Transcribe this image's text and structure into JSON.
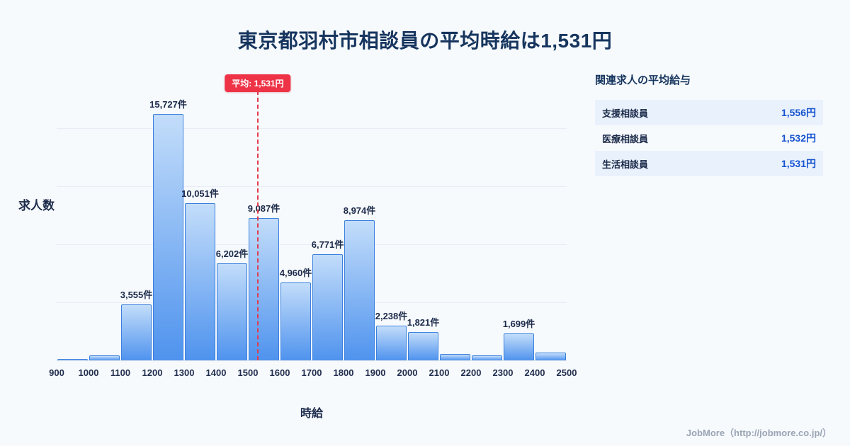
{
  "page": {
    "title": "東京都羽村市相談員の平均時給は1,531円"
  },
  "chart_data": {
    "type": "bar",
    "title": "東京都羽村市相談員の平均時給は1,531円",
    "xlabel": "時給",
    "ylabel": "求人数",
    "xlim": [
      900,
      2500
    ],
    "ylim": [
      0,
      18500
    ],
    "grid": true,
    "legend": "none",
    "x_ticks": [
      "900",
      "1000",
      "1100",
      "1200",
      "1300",
      "1400",
      "1500",
      "1600",
      "1700",
      "1800",
      "1900",
      "2000",
      "2100",
      "2200",
      "2300",
      "2400",
      "2500"
    ],
    "bins": [
      {
        "x0": 900,
        "x1": 1000,
        "value": 100,
        "label": ""
      },
      {
        "x0": 1000,
        "x1": 1100,
        "value": 320,
        "label": ""
      },
      {
        "x0": 1100,
        "x1": 1200,
        "value": 3555,
        "label": "3,555件"
      },
      {
        "x0": 1200,
        "x1": 1300,
        "value": 15727,
        "label": "15,727件"
      },
      {
        "x0": 1300,
        "x1": 1400,
        "value": 10051,
        "label": "10,051件"
      },
      {
        "x0": 1400,
        "x1": 1500,
        "value": 6202,
        "label": "6,202件"
      },
      {
        "x0": 1500,
        "x1": 1600,
        "value": 9087,
        "label": "9,087件"
      },
      {
        "x0": 1600,
        "x1": 1700,
        "value": 4960,
        "label": "4,960件"
      },
      {
        "x0": 1700,
        "x1": 1800,
        "value": 6771,
        "label": "6,771件"
      },
      {
        "x0": 1800,
        "x1": 1900,
        "value": 8974,
        "label": "8,974件"
      },
      {
        "x0": 1900,
        "x1": 2000,
        "value": 2238,
        "label": "2,238件"
      },
      {
        "x0": 2000,
        "x1": 2100,
        "value": 1821,
        "label": "1,821件"
      },
      {
        "x0": 2100,
        "x1": 2200,
        "value": 420,
        "label": ""
      },
      {
        "x0": 2200,
        "x1": 2300,
        "value": 300,
        "label": ""
      },
      {
        "x0": 2300,
        "x1": 2400,
        "value": 1699,
        "label": "1,699件"
      },
      {
        "x0": 2400,
        "x1": 2500,
        "value": 480,
        "label": ""
      }
    ],
    "mean": {
      "value": 1531,
      "label": "平均: 1,531円"
    }
  },
  "side_panel": {
    "heading": "関連求人の平均給与",
    "rows": [
      {
        "label": "支援相談員",
        "value": "1,556円"
      },
      {
        "label": "医療相談員",
        "value": "1,532円"
      },
      {
        "label": "生活相談員",
        "value": "1,531円"
      }
    ]
  },
  "footer": {
    "credit": "JobMore（http://jobmore.co.jp/）"
  },
  "colors": {
    "background": "#f7fafd",
    "title_navy": "#16355e",
    "bar_fill_top": "#c3ddfa",
    "bar_fill_bottom": "#4f93ee",
    "bar_border": "#3a80dd",
    "average_red": "#ee3347",
    "value_blue": "#1553cf",
    "row_highlight": "#e9f1fc"
  }
}
